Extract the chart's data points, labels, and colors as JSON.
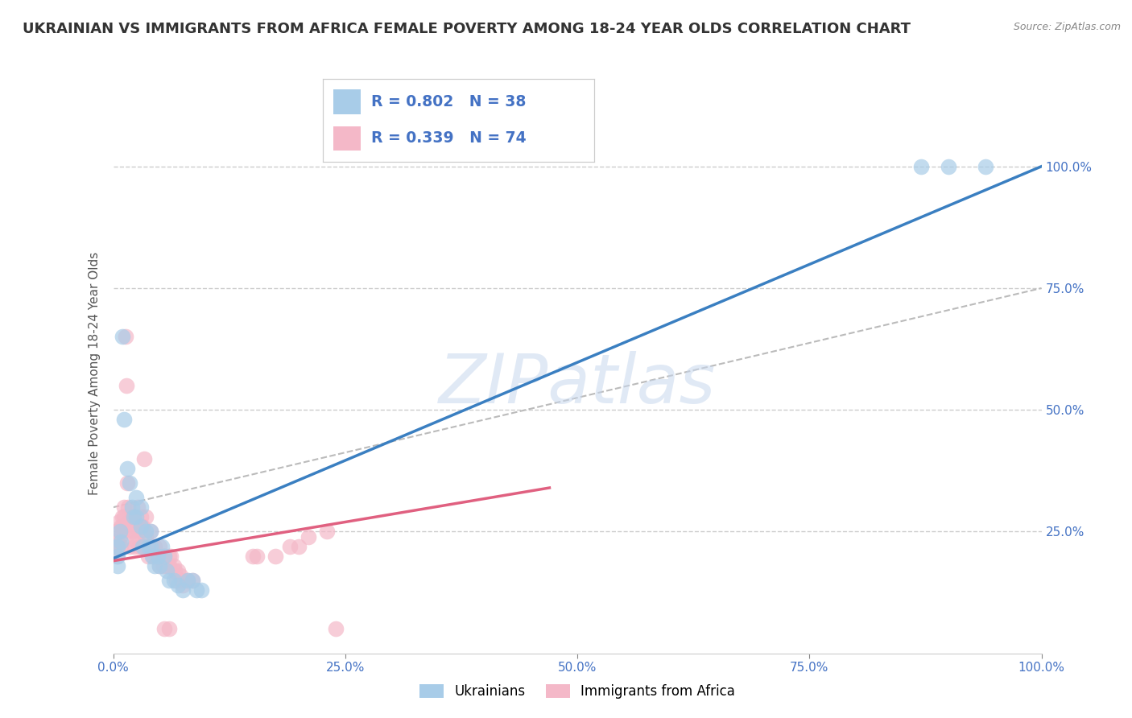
{
  "title": "UKRAINIAN VS IMMIGRANTS FROM AFRICA FEMALE POVERTY AMONG 18-24 YEAR OLDS CORRELATION CHART",
  "source": "Source: ZipAtlas.com",
  "ylabel": "Female Poverty Among 18-24 Year Olds",
  "xlim": [
    0,
    1.0
  ],
  "ylim": [
    0.0,
    1.15
  ],
  "xtick_labels": [
    "0.0%",
    "25.0%",
    "50.0%",
    "75.0%",
    "100.0%"
  ],
  "xtick_vals": [
    0.0,
    0.25,
    0.5,
    0.75,
    1.0
  ],
  "ytick_labels": [
    "25.0%",
    "50.0%",
    "75.0%",
    "100.0%"
  ],
  "ytick_vals": [
    0.25,
    0.5,
    0.75,
    1.0
  ],
  "blue_R": "0.802",
  "blue_N": "38",
  "pink_R": "0.339",
  "pink_N": "74",
  "blue_color": "#a8cce8",
  "pink_color": "#f4b8c8",
  "blue_line_color": "#3a7fc1",
  "pink_line_color": "#e06080",
  "gray_dash_color": "#bbbbbb",
  "blue_label": "Ukrainians",
  "pink_label": "Immigrants from Africa",
  "background_color": "#ffffff",
  "grid_color": "#cccccc",
  "title_fontsize": 13,
  "axis_label_fontsize": 11,
  "tick_fontsize": 11,
  "blue_scatter": [
    [
      0.005,
      0.2
    ],
    [
      0.005,
      0.18
    ],
    [
      0.005,
      0.22
    ],
    [
      0.007,
      0.25
    ],
    [
      0.008,
      0.23
    ],
    [
      0.01,
      0.65
    ],
    [
      0.012,
      0.48
    ],
    [
      0.015,
      0.38
    ],
    [
      0.018,
      0.35
    ],
    [
      0.02,
      0.3
    ],
    [
      0.022,
      0.28
    ],
    [
      0.025,
      0.32
    ],
    [
      0.025,
      0.28
    ],
    [
      0.03,
      0.26
    ],
    [
      0.03,
      0.3
    ],
    [
      0.032,
      0.22
    ],
    [
      0.035,
      0.25
    ],
    [
      0.038,
      0.22
    ],
    [
      0.04,
      0.25
    ],
    [
      0.04,
      0.22
    ],
    [
      0.042,
      0.2
    ],
    [
      0.045,
      0.18
    ],
    [
      0.048,
      0.2
    ],
    [
      0.05,
      0.18
    ],
    [
      0.052,
      0.22
    ],
    [
      0.055,
      0.2
    ],
    [
      0.058,
      0.17
    ],
    [
      0.06,
      0.15
    ],
    [
      0.065,
      0.15
    ],
    [
      0.07,
      0.14
    ],
    [
      0.075,
      0.13
    ],
    [
      0.08,
      0.15
    ],
    [
      0.085,
      0.15
    ],
    [
      0.09,
      0.13
    ],
    [
      0.095,
      0.13
    ],
    [
      0.87,
      1.0
    ],
    [
      0.9,
      1.0
    ],
    [
      0.94,
      1.0
    ]
  ],
  "pink_scatter": [
    [
      0.002,
      0.22
    ],
    [
      0.003,
      0.25
    ],
    [
      0.004,
      0.2
    ],
    [
      0.005,
      0.23
    ],
    [
      0.006,
      0.27
    ],
    [
      0.007,
      0.24
    ],
    [
      0.008,
      0.26
    ],
    [
      0.008,
      0.22
    ],
    [
      0.01,
      0.28
    ],
    [
      0.01,
      0.26
    ],
    [
      0.012,
      0.3
    ],
    [
      0.012,
      0.28
    ],
    [
      0.013,
      0.65
    ],
    [
      0.014,
      0.55
    ],
    [
      0.015,
      0.35
    ],
    [
      0.015,
      0.25
    ],
    [
      0.016,
      0.3
    ],
    [
      0.017,
      0.27
    ],
    [
      0.018,
      0.22
    ],
    [
      0.02,
      0.28
    ],
    [
      0.02,
      0.25
    ],
    [
      0.022,
      0.28
    ],
    [
      0.022,
      0.25
    ],
    [
      0.023,
      0.22
    ],
    [
      0.025,
      0.26
    ],
    [
      0.025,
      0.23
    ],
    [
      0.026,
      0.3
    ],
    [
      0.028,
      0.25
    ],
    [
      0.028,
      0.22
    ],
    [
      0.03,
      0.28
    ],
    [
      0.03,
      0.25
    ],
    [
      0.032,
      0.26
    ],
    [
      0.032,
      0.22
    ],
    [
      0.033,
      0.4
    ],
    [
      0.035,
      0.28
    ],
    [
      0.035,
      0.24
    ],
    [
      0.036,
      0.22
    ],
    [
      0.038,
      0.22
    ],
    [
      0.038,
      0.2
    ],
    [
      0.04,
      0.25
    ],
    [
      0.04,
      0.22
    ],
    [
      0.042,
      0.22
    ],
    [
      0.043,
      0.2
    ],
    [
      0.045,
      0.22
    ],
    [
      0.046,
      0.2
    ],
    [
      0.048,
      0.2
    ],
    [
      0.05,
      0.22
    ],
    [
      0.05,
      0.18
    ],
    [
      0.052,
      0.2
    ],
    [
      0.054,
      0.18
    ],
    [
      0.055,
      0.2
    ],
    [
      0.058,
      0.18
    ],
    [
      0.06,
      0.2
    ],
    [
      0.06,
      0.18
    ],
    [
      0.062,
      0.2
    ],
    [
      0.065,
      0.18
    ],
    [
      0.066,
      0.17
    ],
    [
      0.068,
      0.15
    ],
    [
      0.07,
      0.17
    ],
    [
      0.072,
      0.16
    ],
    [
      0.074,
      0.15
    ],
    [
      0.075,
      0.14
    ],
    [
      0.08,
      0.15
    ],
    [
      0.085,
      0.15
    ],
    [
      0.055,
      0.05
    ],
    [
      0.06,
      0.05
    ],
    [
      0.15,
      0.2
    ],
    [
      0.155,
      0.2
    ],
    [
      0.175,
      0.2
    ],
    [
      0.19,
      0.22
    ],
    [
      0.2,
      0.22
    ],
    [
      0.21,
      0.24
    ],
    [
      0.23,
      0.25
    ],
    [
      0.24,
      0.05
    ]
  ],
  "blue_regline": [
    [
      0.0,
      0.195
    ],
    [
      1.0,
      1.0
    ]
  ],
  "pink_regline": [
    [
      0.0,
      0.19
    ],
    [
      0.47,
      0.34
    ]
  ],
  "gray_dashline": [
    [
      0.0,
      0.3
    ],
    [
      1.0,
      0.75
    ]
  ]
}
